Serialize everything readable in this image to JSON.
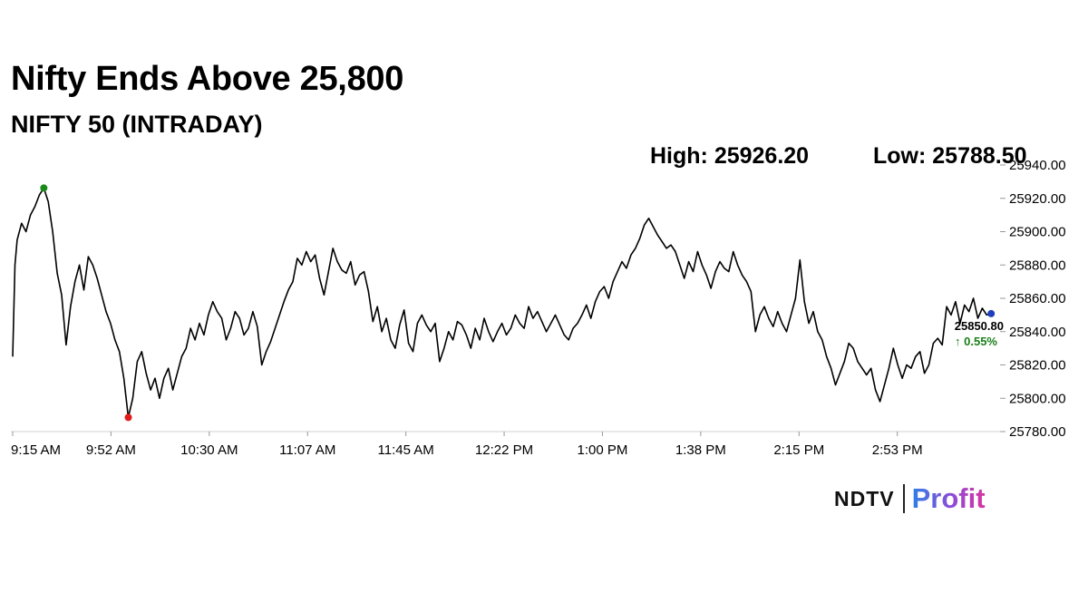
{
  "headline": "Nifty Ends Above 25,800",
  "subtitle": "NIFTY 50 (INTRADAY)",
  "stats": {
    "high": "High: 25926.20",
    "low": "Low: 25788.50"
  },
  "brand": {
    "ndtv": "NDTV",
    "profit": "Profit"
  },
  "colors": {
    "line": "#000000",
    "high_marker": "#1a8a1a",
    "low_marker": "#e01b1b",
    "last_marker": "#1f3fbf",
    "change_up": "#1a7f1a"
  },
  "chart_data": {
    "type": "line",
    "title": "NIFTY 50 (INTRADAY)",
    "xlabel": "",
    "ylabel": "",
    "ylim": [
      25780,
      25940
    ],
    "yticks": [
      "25780.00",
      "25800.00",
      "25820.00",
      "25840.00",
      "25860.00",
      "25880.00",
      "25900.00",
      "25920.00",
      "25940.00"
    ],
    "xticks": [
      "9:15 AM",
      "9:52 AM",
      "10:30 AM",
      "11:07 AM",
      "11:45 AM",
      "12:22 PM",
      "1:00 PM",
      "1:38 PM",
      "2:15 PM",
      "2:53 PM"
    ],
    "x_unit": "minutes since market open",
    "grid": false,
    "series": [
      {
        "name": "NIFTY 50",
        "points": [
          [
            0,
            25825
          ],
          [
            0.5,
            25880
          ],
          [
            1,
            25895
          ],
          [
            2,
            25905
          ],
          [
            3,
            25900
          ],
          [
            4,
            25910
          ],
          [
            5,
            25915
          ],
          [
            6,
            25922
          ],
          [
            7,
            25926.2
          ],
          [
            8,
            25918
          ],
          [
            9,
            25900
          ],
          [
            10,
            25875
          ],
          [
            11,
            25862
          ],
          [
            12,
            25832
          ],
          [
            13,
            25855
          ],
          [
            14,
            25870
          ],
          [
            15,
            25880
          ],
          [
            16,
            25865
          ],
          [
            17,
            25885
          ],
          [
            18,
            25880
          ],
          [
            19,
            25872
          ],
          [
            20,
            25862
          ],
          [
            21,
            25852
          ],
          [
            22,
            25845
          ],
          [
            23,
            25835
          ],
          [
            24,
            25828
          ],
          [
            25,
            25812
          ],
          [
            26,
            25788.5
          ],
          [
            27,
            25800
          ],
          [
            28,
            25822
          ],
          [
            29,
            25828
          ],
          [
            30,
            25815
          ],
          [
            31,
            25805
          ],
          [
            32,
            25812
          ],
          [
            33,
            25800
          ],
          [
            34,
            25812
          ],
          [
            35,
            25818
          ],
          [
            36,
            25805
          ],
          [
            37,
            25815
          ],
          [
            38,
            25825
          ],
          [
            39,
            25830
          ],
          [
            40,
            25842
          ],
          [
            41,
            25835
          ],
          [
            42,
            25845
          ],
          [
            43,
            25838
          ],
          [
            44,
            25850
          ],
          [
            45,
            25858
          ],
          [
            46,
            25852
          ],
          [
            47,
            25848
          ],
          [
            48,
            25835
          ],
          [
            49,
            25842
          ],
          [
            50,
            25852
          ],
          [
            51,
            25848
          ],
          [
            52,
            25838
          ],
          [
            53,
            25842
          ],
          [
            54,
            25852
          ],
          [
            55,
            25843
          ],
          [
            56,
            25820
          ],
          [
            57,
            25828
          ],
          [
            58,
            25834
          ],
          [
            59,
            25842
          ],
          [
            60,
            25850
          ],
          [
            61,
            25858
          ],
          [
            62,
            25865
          ],
          [
            63,
            25870
          ],
          [
            64,
            25884
          ],
          [
            65,
            25880
          ],
          [
            66,
            25888
          ],
          [
            67,
            25882
          ],
          [
            68,
            25886
          ],
          [
            69,
            25872
          ],
          [
            70,
            25862
          ],
          [
            71,
            25876
          ],
          [
            72,
            25890
          ],
          [
            73,
            25882
          ],
          [
            74,
            25877
          ],
          [
            75,
            25875
          ],
          [
            76,
            25882
          ],
          [
            77,
            25868
          ],
          [
            78,
            25874
          ],
          [
            79,
            25876
          ],
          [
            80,
            25864
          ],
          [
            81,
            25846
          ],
          [
            82,
            25855
          ],
          [
            83,
            25840
          ],
          [
            84,
            25848
          ],
          [
            85,
            25835
          ],
          [
            86,
            25830
          ],
          [
            87,
            25844
          ],
          [
            88,
            25853
          ],
          [
            89,
            25833
          ],
          [
            90,
            25828
          ],
          [
            91,
            25845
          ],
          [
            92,
            25850
          ],
          [
            93,
            25844
          ],
          [
            94,
            25840
          ],
          [
            95,
            25845
          ],
          [
            96,
            25822
          ],
          [
            97,
            25830
          ],
          [
            98,
            25840
          ],
          [
            99,
            25835
          ],
          [
            100,
            25846
          ],
          [
            101,
            25844
          ],
          [
            102,
            25838
          ],
          [
            103,
            25830
          ],
          [
            104,
            25842
          ],
          [
            105,
            25835
          ],
          [
            106,
            25848
          ],
          [
            107,
            25840
          ],
          [
            108,
            25834
          ],
          [
            109,
            25840
          ],
          [
            110,
            25845
          ],
          [
            111,
            25838
          ],
          [
            112,
            25842
          ],
          [
            113,
            25850
          ],
          [
            114,
            25845
          ],
          [
            115,
            25842
          ],
          [
            116,
            25855
          ],
          [
            117,
            25848
          ],
          [
            118,
            25852
          ],
          [
            119,
            25846
          ],
          [
            120,
            25840
          ],
          [
            121,
            25845
          ],
          [
            122,
            25850
          ],
          [
            123,
            25844
          ],
          [
            124,
            25838
          ],
          [
            125,
            25835
          ],
          [
            126,
            25842
          ],
          [
            127,
            25845
          ],
          [
            128,
            25850
          ],
          [
            129,
            25856
          ],
          [
            130,
            25848
          ],
          [
            131,
            25858
          ],
          [
            132,
            25864
          ],
          [
            133,
            25867
          ],
          [
            134,
            25860
          ],
          [
            135,
            25870
          ],
          [
            136,
            25876
          ],
          [
            137,
            25882
          ],
          [
            138,
            25878
          ],
          [
            139,
            25886
          ],
          [
            140,
            25890
          ],
          [
            141,
            25896
          ],
          [
            142,
            25904
          ],
          [
            143,
            25908
          ],
          [
            144,
            25903
          ],
          [
            145,
            25898
          ],
          [
            146,
            25894
          ],
          [
            147,
            25890
          ],
          [
            148,
            25892
          ],
          [
            149,
            25888
          ],
          [
            150,
            25880
          ],
          [
            151,
            25872
          ],
          [
            152,
            25882
          ],
          [
            153,
            25876
          ],
          [
            154,
            25888
          ],
          [
            155,
            25880
          ],
          [
            156,
            25874
          ],
          [
            157,
            25866
          ],
          [
            158,
            25876
          ],
          [
            159,
            25882
          ],
          [
            160,
            25878
          ],
          [
            161,
            25876
          ],
          [
            162,
            25888
          ],
          [
            163,
            25880
          ],
          [
            164,
            25874
          ],
          [
            165,
            25870
          ],
          [
            166,
            25864
          ],
          [
            167,
            25840
          ],
          [
            168,
            25850
          ],
          [
            169,
            25855
          ],
          [
            170,
            25848
          ],
          [
            171,
            25843
          ],
          [
            172,
            25852
          ],
          [
            173,
            25845
          ],
          [
            174,
            25840
          ],
          [
            175,
            25850
          ],
          [
            176,
            25860
          ],
          [
            177,
            25883
          ],
          [
            178,
            25858
          ],
          [
            179,
            25845
          ],
          [
            180,
            25852
          ],
          [
            181,
            25840
          ],
          [
            182,
            25835
          ],
          [
            183,
            25825
          ],
          [
            184,
            25818
          ],
          [
            185,
            25808
          ],
          [
            186,
            25815
          ],
          [
            187,
            25822
          ],
          [
            188,
            25833
          ],
          [
            189,
            25830
          ],
          [
            190,
            25822
          ],
          [
            191,
            25818
          ],
          [
            192,
            25814
          ],
          [
            193,
            25818
          ],
          [
            194,
            25805
          ],
          [
            195,
            25798
          ],
          [
            196,
            25808
          ],
          [
            197,
            25818
          ],
          [
            198,
            25830
          ],
          [
            199,
            25820
          ],
          [
            200,
            25812
          ],
          [
            201,
            25820
          ],
          [
            202,
            25818
          ],
          [
            203,
            25825
          ],
          [
            204,
            25828
          ],
          [
            205,
            25815
          ],
          [
            206,
            25820
          ],
          [
            207,
            25833
          ],
          [
            208,
            25836
          ],
          [
            209,
            25832
          ],
          [
            210,
            25855
          ],
          [
            211,
            25850
          ],
          [
            212,
            25858
          ],
          [
            213,
            25845
          ],
          [
            214,
            25856
          ],
          [
            215,
            25852
          ],
          [
            216,
            25860
          ],
          [
            217,
            25848
          ],
          [
            218,
            25854
          ],
          [
            219,
            25850
          ],
          [
            220,
            25850.8
          ]
        ]
      }
    ],
    "annotations": {
      "high_point": {
        "x": 7,
        "y": 25926.2
      },
      "low_point": {
        "x": 26,
        "y": 25788.5
      },
      "last": {
        "x": 220,
        "value": "25850.80",
        "change": "↑ 0.55%"
      }
    }
  }
}
